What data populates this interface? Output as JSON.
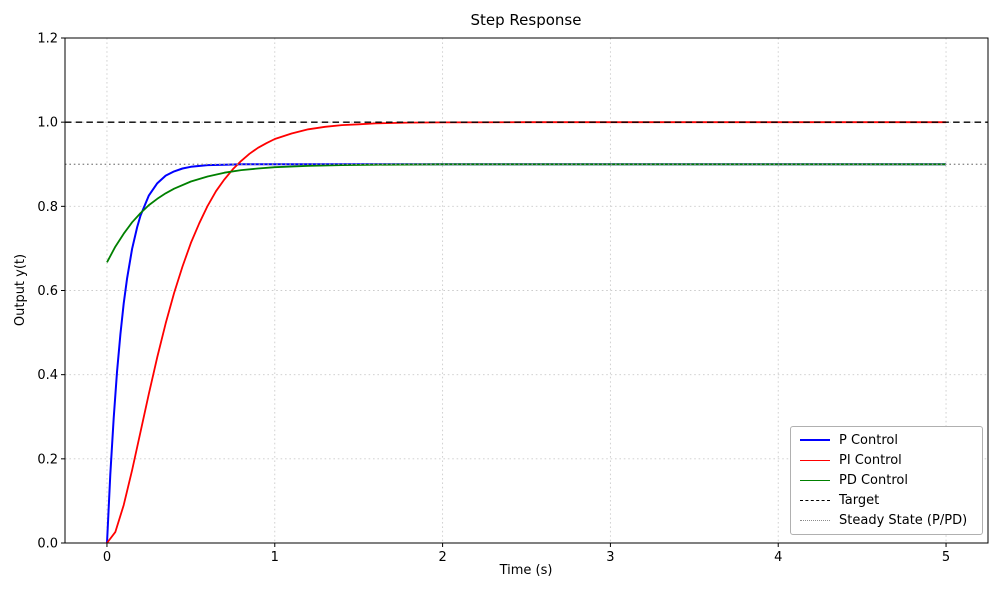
{
  "chart_data": {
    "type": "line",
    "title": "Step Response",
    "xlabel": "Time (s)",
    "ylabel": "Output y(t)",
    "xlim": [
      -0.25,
      5.25
    ],
    "ylim": [
      0,
      1.2
    ],
    "xticks": [
      0,
      1,
      2,
      3,
      4,
      5
    ],
    "xtick_labels": [
      "0",
      "1",
      "2",
      "3",
      "4",
      "5"
    ],
    "yticks": [
      0.0,
      0.2,
      0.4,
      0.6,
      0.8,
      1.0,
      1.2
    ],
    "ytick_labels": [
      "0.0",
      "0.2",
      "0.4",
      "0.6",
      "0.8",
      "1.0",
      "1.2"
    ],
    "grid": {
      "on": true,
      "color": "#cccccc",
      "style": "dotted"
    },
    "legend": {
      "position": "lower right"
    },
    "series": [
      {
        "name": "P Control",
        "color": "#0000ff",
        "style": "solid",
        "width": 2.0,
        "steady_state": 0.9,
        "points": [
          [
            0,
            0
          ],
          [
            0.02,
            0.163
          ],
          [
            0.04,
            0.297
          ],
          [
            0.06,
            0.406
          ],
          [
            0.08,
            0.496
          ],
          [
            0.1,
            0.569
          ],
          [
            0.12,
            0.629
          ],
          [
            0.15,
            0.699
          ],
          [
            0.18,
            0.751
          ],
          [
            0.2,
            0.778
          ],
          [
            0.25,
            0.826
          ],
          [
            0.3,
            0.855
          ],
          [
            0.35,
            0.873
          ],
          [
            0.4,
            0.883
          ],
          [
            0.45,
            0.89
          ],
          [
            0.5,
            0.894
          ],
          [
            0.6,
            0.898
          ],
          [
            0.7,
            0.899
          ],
          [
            0.8,
            0.9
          ],
          [
            1,
            0.9
          ],
          [
            1.5,
            0.9
          ],
          [
            2,
            0.9
          ],
          [
            2.5,
            0.9
          ],
          [
            3,
            0.9
          ],
          [
            3.5,
            0.9
          ],
          [
            4,
            0.9
          ],
          [
            4.5,
            0.9
          ],
          [
            5,
            0.9
          ]
        ]
      },
      {
        "name": "PI Control",
        "color": "#ff0000",
        "style": "solid",
        "width": 1.8,
        "steady_state": 1.0,
        "points": [
          [
            0,
            0
          ],
          [
            0.05,
            0.026
          ],
          [
            0.1,
            0.09
          ],
          [
            0.15,
            0.173
          ],
          [
            0.2,
            0.264
          ],
          [
            0.25,
            0.355
          ],
          [
            0.3,
            0.442
          ],
          [
            0.35,
            0.522
          ],
          [
            0.4,
            0.594
          ],
          [
            0.45,
            0.657
          ],
          [
            0.5,
            0.713
          ],
          [
            0.55,
            0.76
          ],
          [
            0.6,
            0.801
          ],
          [
            0.65,
            0.836
          ],
          [
            0.7,
            0.864
          ],
          [
            0.75,
            0.888
          ],
          [
            0.8,
            0.908
          ],
          [
            0.85,
            0.925
          ],
          [
            0.9,
            0.939
          ],
          [
            0.95,
            0.95
          ],
          [
            1,
            0.96
          ],
          [
            1.1,
            0.973
          ],
          [
            1.2,
            0.983
          ],
          [
            1.3,
            0.989
          ],
          [
            1.4,
            0.993
          ],
          [
            1.5,
            0.995
          ],
          [
            1.6,
            0.997
          ],
          [
            1.8,
            0.999
          ],
          [
            2,
            0.9995
          ],
          [
            2.5,
            1
          ],
          [
            3,
            1
          ],
          [
            3.5,
            1
          ],
          [
            4,
            1
          ],
          [
            4.5,
            1
          ],
          [
            5,
            1
          ]
        ]
      },
      {
        "name": "PD Control",
        "color": "#008000",
        "style": "solid",
        "width": 1.8,
        "steady_state": 0.9,
        "points": [
          [
            0,
            0.667
          ],
          [
            0.05,
            0.704
          ],
          [
            0.1,
            0.735
          ],
          [
            0.15,
            0.762
          ],
          [
            0.2,
            0.784
          ],
          [
            0.25,
            0.803
          ],
          [
            0.3,
            0.818
          ],
          [
            0.35,
            0.831
          ],
          [
            0.4,
            0.842
          ],
          [
            0.5,
            0.859
          ],
          [
            0.6,
            0.871
          ],
          [
            0.7,
            0.88
          ],
          [
            0.8,
            0.886
          ],
          [
            0.9,
            0.89
          ],
          [
            1,
            0.893
          ],
          [
            1.2,
            0.896
          ],
          [
            1.4,
            0.898
          ],
          [
            1.6,
            0.899
          ],
          [
            2,
            0.9
          ],
          [
            2.5,
            0.9
          ],
          [
            3,
            0.9
          ],
          [
            3.5,
            0.9
          ],
          [
            4,
            0.9
          ],
          [
            4.5,
            0.9
          ],
          [
            5,
            0.9
          ]
        ]
      },
      {
        "name": "Target",
        "color": "#000000",
        "style": "dashed",
        "width": 1.4,
        "value": 1.0,
        "points": [
          [
            -0.25,
            1.0
          ],
          [
            5.25,
            1.0
          ]
        ]
      },
      {
        "name": "Steady State (P/PD)",
        "color": "#8c8c8c",
        "style": "dotted",
        "width": 1.3,
        "value": 0.9,
        "points": [
          [
            -0.25,
            0.9
          ],
          [
            5.25,
            0.9
          ]
        ]
      }
    ]
  }
}
